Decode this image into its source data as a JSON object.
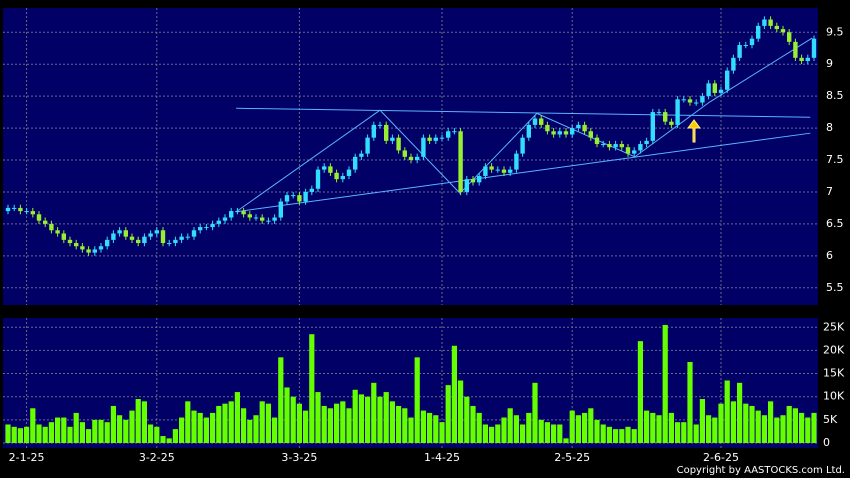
{
  "chart_data": {
    "type": "candlestick",
    "up_color": "#33ddff",
    "down_color": "#99ee33",
    "volume_color": "#66ff00",
    "trend_color": "#5ab4ff",
    "grid": true,
    "open": [
      6.7,
      6.75,
      6.75,
      6.7,
      6.7,
      6.65,
      6.55,
      6.5,
      6.4,
      6.35,
      6.25,
      6.2,
      6.15,
      6.1,
      6.05,
      6.1,
      6.15,
      6.25,
      6.35,
      6.4,
      6.3,
      6.25,
      6.2,
      6.3,
      6.35,
      6.4,
      6.2,
      6.2,
      6.25,
      6.3,
      6.3,
      6.4,
      6.45,
      6.45,
      6.5,
      6.55,
      6.6,
      6.7,
      6.7,
      6.65,
      6.6,
      6.6,
      6.55,
      6.55,
      6.6,
      6.85,
      6.95,
      6.95,
      6.85,
      7.0,
      7.05,
      7.35,
      7.4,
      7.3,
      7.2,
      7.25,
      7.35,
      7.55,
      7.6,
      7.85,
      8.05,
      8.05,
      7.8,
      7.85,
      7.65,
      7.55,
      7.5,
      7.55,
      7.85,
      7.8,
      7.85,
      7.85,
      7.95,
      7.95,
      7.0,
      7.2,
      7.15,
      7.25,
      7.4,
      7.35,
      7.35,
      7.3,
      7.35,
      7.6,
      7.85,
      8.05,
      8.15,
      8.05,
      7.95,
      7.9,
      7.95,
      7.9,
      8.0,
      8.05,
      7.95,
      7.85,
      7.75,
      7.75,
      7.7,
      7.75,
      7.7,
      7.6,
      7.65,
      7.75,
      7.8,
      8.25,
      8.25,
      8.1,
      8.05,
      8.45,
      8.45,
      8.4,
      8.4,
      8.5,
      8.7,
      8.55,
      8.6,
      8.9,
      9.1,
      9.3,
      9.3,
      9.4,
      9.6,
      9.7,
      9.6,
      9.55,
      9.5,
      9.35,
      9.1,
      9.05,
      9.1
    ],
    "high": [
      6.8,
      6.8,
      6.8,
      6.75,
      6.75,
      6.7,
      6.6,
      6.55,
      6.45,
      6.4,
      6.3,
      6.25,
      6.2,
      6.15,
      6.15,
      6.2,
      6.3,
      6.4,
      6.45,
      6.45,
      6.35,
      6.3,
      6.35,
      6.4,
      6.45,
      6.45,
      6.25,
      6.3,
      6.35,
      6.35,
      6.45,
      6.5,
      6.5,
      6.55,
      6.6,
      6.65,
      6.75,
      6.75,
      6.75,
      6.7,
      6.65,
      6.65,
      6.6,
      6.65,
      6.9,
      7.0,
      7.0,
      7.0,
      7.05,
      7.1,
      7.4,
      7.45,
      7.45,
      7.35,
      7.3,
      7.4,
      7.6,
      7.65,
      7.9,
      8.1,
      8.1,
      8.1,
      7.9,
      7.9,
      7.7,
      7.6,
      7.6,
      7.9,
      7.9,
      7.9,
      7.9,
      8.0,
      8.0,
      8.0,
      7.25,
      7.25,
      7.3,
      7.45,
      7.45,
      7.4,
      7.4,
      7.4,
      7.65,
      7.9,
      8.1,
      8.2,
      8.2,
      8.1,
      8.0,
      8.0,
      8.0,
      8.05,
      8.1,
      8.1,
      8.0,
      7.9,
      7.8,
      7.8,
      7.8,
      7.8,
      7.75,
      7.7,
      7.8,
      7.85,
      8.3,
      8.3,
      8.3,
      8.15,
      8.5,
      8.5,
      8.5,
      8.45,
      8.55,
      8.75,
      8.75,
      8.65,
      8.95,
      9.15,
      9.35,
      9.35,
      9.45,
      9.65,
      9.75,
      9.75,
      9.65,
      9.6,
      9.55,
      9.4,
      9.15,
      9.15,
      9.45
    ],
    "low": [
      6.65,
      6.7,
      6.65,
      6.65,
      6.6,
      6.5,
      6.45,
      6.35,
      6.3,
      6.2,
      6.15,
      6.1,
      6.05,
      6.0,
      6.0,
      6.05,
      6.1,
      6.2,
      6.3,
      6.25,
      6.2,
      6.15,
      6.15,
      6.25,
      6.3,
      6.15,
      6.15,
      6.15,
      6.2,
      6.25,
      6.25,
      6.35,
      6.4,
      6.4,
      6.45,
      6.5,
      6.55,
      6.65,
      6.6,
      6.55,
      6.55,
      6.5,
      6.5,
      6.5,
      6.55,
      6.8,
      6.9,
      6.8,
      6.8,
      6.95,
      7.0,
      7.3,
      7.25,
      7.15,
      7.15,
      7.2,
      7.3,
      7.5,
      7.55,
      7.8,
      8.0,
      7.75,
      7.75,
      7.6,
      7.5,
      7.45,
      7.45,
      7.5,
      7.75,
      7.75,
      7.8,
      7.8,
      7.9,
      6.95,
      6.95,
      7.1,
      7.1,
      7.2,
      7.3,
      7.3,
      7.25,
      7.25,
      7.3,
      7.55,
      7.8,
      8.0,
      8.0,
      7.9,
      7.85,
      7.85,
      7.85,
      7.85,
      7.95,
      7.9,
      7.8,
      7.7,
      7.7,
      7.65,
      7.65,
      7.65,
      7.55,
      7.55,
      7.6,
      7.7,
      7.75,
      8.2,
      8.05,
      8.0,
      8.0,
      8.4,
      8.35,
      8.35,
      8.35,
      8.45,
      8.5,
      8.5,
      8.55,
      8.85,
      9.05,
      9.25,
      9.25,
      9.35,
      9.55,
      9.55,
      9.5,
      9.45,
      9.3,
      9.05,
      9.0,
      9.0,
      9.05
    ],
    "close": [
      6.75,
      6.75,
      6.7,
      6.7,
      6.65,
      6.55,
      6.5,
      6.4,
      6.35,
      6.25,
      6.2,
      6.15,
      6.1,
      6.05,
      6.1,
      6.15,
      6.25,
      6.35,
      6.4,
      6.3,
      6.25,
      6.2,
      6.3,
      6.35,
      6.4,
      6.2,
      6.2,
      6.25,
      6.3,
      6.3,
      6.4,
      6.45,
      6.45,
      6.5,
      6.55,
      6.6,
      6.7,
      6.7,
      6.65,
      6.6,
      6.6,
      6.55,
      6.55,
      6.6,
      6.85,
      6.95,
      6.95,
      6.85,
      7.0,
      7.05,
      7.35,
      7.4,
      7.3,
      7.2,
      7.25,
      7.35,
      7.55,
      7.6,
      7.85,
      8.05,
      8.05,
      7.8,
      7.85,
      7.65,
      7.55,
      7.5,
      7.55,
      7.85,
      7.8,
      7.85,
      7.85,
      7.95,
      7.95,
      7.0,
      7.2,
      7.15,
      7.25,
      7.4,
      7.35,
      7.35,
      7.3,
      7.35,
      7.6,
      7.85,
      8.05,
      8.15,
      8.05,
      7.95,
      7.9,
      7.95,
      7.9,
      8.0,
      8.05,
      7.95,
      7.85,
      7.75,
      7.75,
      7.7,
      7.75,
      7.7,
      7.6,
      7.65,
      7.75,
      7.8,
      8.25,
      8.25,
      8.1,
      8.05,
      8.45,
      8.45,
      8.4,
      8.4,
      8.5,
      8.7,
      8.55,
      8.6,
      8.9,
      9.1,
      9.3,
      9.3,
      9.4,
      9.6,
      9.7,
      9.6,
      9.55,
      9.5,
      9.35,
      9.1,
      9.05,
      9.1,
      9.4
    ],
    "volume": [
      4000,
      3500,
      3200,
      3500,
      7500,
      4000,
      3500,
      4500,
      5500,
      5500,
      3500,
      6500,
      4500,
      3000,
      5000,
      5000,
      4500,
      8000,
      6000,
      5000,
      7000,
      9500,
      9000,
      4000,
      3500,
      1500,
      1000,
      3000,
      5500,
      9000,
      7000,
      6500,
      5500,
      6500,
      8000,
      8500,
      9000,
      11000,
      7500,
      5000,
      6000,
      9000,
      8500,
      5500,
      18500,
      12000,
      10000,
      8500,
      7000,
      23500,
      11000,
      8000,
      7500,
      8500,
      9000,
      7500,
      11500,
      10500,
      10000,
      13000,
      10000,
      11000,
      9000,
      8000,
      7500,
      5500,
      18500,
      7000,
      6500,
      6000,
      4500,
      12500,
      21000,
      13500,
      10000,
      8000,
      6500,
      4000,
      3500,
      4000,
      5500,
      7500,
      6000,
      4000,
      6500,
      13000,
      5000,
      4500,
      4000,
      4000,
      1000,
      7000,
      6000,
      6500,
      7500,
      5000,
      4000,
      3500,
      3000,
      3000,
      3500,
      3000,
      22000,
      7000,
      6500,
      6000,
      25500,
      6500,
      4500,
      4500,
      17500,
      4000,
      9500,
      6000,
      5500,
      8500,
      13500,
      9000,
      13000,
      8500,
      8000,
      7000,
      6000,
      9000,
      5500,
      6000,
      8000,
      7500,
      6500,
      5500,
      6500
    ],
    "ylim": [
      5.23,
      9.88
    ],
    "yticks": [
      5.5,
      6,
      6.5,
      7,
      7.5,
      8,
      8.5,
      9,
      9.5
    ],
    "volume_ylim": [
      0,
      27000
    ],
    "volume_ticks": [
      0,
      {
        "value": 5000,
        "label": "5K"
      },
      {
        "value": 10000,
        "label": "10K"
      },
      {
        "value": 15000,
        "label": "15K"
      },
      {
        "value": 20000,
        "label": "20K"
      },
      {
        "value": 25000,
        "label": "25K"
      }
    ],
    "xticks": [
      {
        "value": 3,
        "label": "2-1-25"
      },
      {
        "value": 24,
        "label": "3-2-25"
      },
      {
        "value": 47,
        "label": "3-3-25"
      },
      {
        "value": 70,
        "label": "1-4-25"
      },
      {
        "value": 91,
        "label": "2-5-25"
      },
      {
        "value": 115,
        "label": "2-6-25"
      }
    ],
    "trend_lines": [
      {
        "x": [
          36.8,
          129.4
        ],
        "values": [
          8.31,
          8.17
        ]
      },
      {
        "x": [
          36.8,
          129.4
        ],
        "values": [
          6.69,
          7.92
        ]
      },
      {
        "x": [
          36.8,
          60,
          72.9,
          85.3,
          101.1,
          113.2,
          129.7
        ],
        "values": [
          6.69,
          8.28,
          6.98,
          8.23,
          7.55,
          8.41,
          9.41
        ]
      }
    ],
    "copyright": "Copyright by AASTOCKS.com Ltd."
  }
}
